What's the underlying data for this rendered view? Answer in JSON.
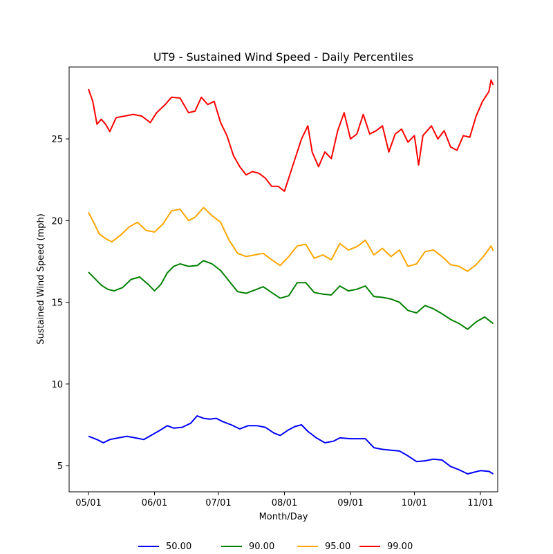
{
  "chart_data": {
    "type": "line",
    "title": "UT9 - Sustained Wind Speed - Daily Percentiles",
    "xlabel": "Month/Day",
    "ylabel": "Sustained Wind Speed (mph)",
    "x_range": [
      "2019-05-01",
      "2019-11-01"
    ],
    "x_ticks": [
      {
        "label": "05/01",
        "date": "2019-05-01"
      },
      {
        "label": "06/01",
        "date": "2019-06-01"
      },
      {
        "label": "07/01",
        "date": "2019-07-01"
      },
      {
        "label": "08/01",
        "date": "2019-08-01"
      },
      {
        "label": "09/01",
        "date": "2019-09-01"
      },
      {
        "label": "10/01",
        "date": "2019-10-01"
      },
      {
        "label": "11/01",
        "date": "2019-11-01"
      }
    ],
    "ylim": [
      3.4,
      29.4
    ],
    "y_ticks": [
      5,
      10,
      15,
      20,
      25
    ],
    "grid": false,
    "legend_position": "bottom",
    "series": [
      {
        "name": "50.00",
        "color": "#0000ff",
        "points": [
          [
            "2019-05-01",
            6.8
          ],
          [
            "2019-05-05",
            6.6
          ],
          [
            "2019-05-08",
            6.4
          ],
          [
            "2019-05-11",
            6.6
          ],
          [
            "2019-05-15",
            6.7
          ],
          [
            "2019-05-19",
            6.8
          ],
          [
            "2019-05-23",
            6.7
          ],
          [
            "2019-05-27",
            6.6
          ],
          [
            "2019-05-31",
            6.9
          ],
          [
            "2019-06-04",
            7.2
          ],
          [
            "2019-06-07",
            7.45
          ],
          [
            "2019-06-10",
            7.3
          ],
          [
            "2019-06-14",
            7.35
          ],
          [
            "2019-06-18",
            7.6
          ],
          [
            "2019-06-21",
            8.05
          ],
          [
            "2019-06-24",
            7.9
          ],
          [
            "2019-06-27",
            7.85
          ],
          [
            "2019-06-30",
            7.9
          ],
          [
            "2019-07-03",
            7.7
          ],
          [
            "2019-07-07",
            7.5
          ],
          [
            "2019-07-11",
            7.25
          ],
          [
            "2019-07-15",
            7.45
          ],
          [
            "2019-07-19",
            7.45
          ],
          [
            "2019-07-23",
            7.35
          ],
          [
            "2019-07-27",
            7.0
          ],
          [
            "2019-07-30",
            6.85
          ],
          [
            "2019-08-03",
            7.2
          ],
          [
            "2019-08-06",
            7.4
          ],
          [
            "2019-08-09",
            7.5
          ],
          [
            "2019-08-12",
            7.1
          ],
          [
            "2019-08-16",
            6.7
          ],
          [
            "2019-08-20",
            6.4
          ],
          [
            "2019-08-24",
            6.5
          ],
          [
            "2019-08-27",
            6.7
          ],
          [
            "2019-09-01",
            6.65
          ],
          [
            "2019-09-08",
            6.65
          ],
          [
            "2019-09-12",
            6.1
          ],
          [
            "2019-09-16",
            6.0
          ],
          [
            "2019-09-20",
            5.95
          ],
          [
            "2019-09-24",
            5.9
          ],
          [
            "2019-09-28",
            5.6
          ],
          [
            "2019-10-02",
            5.25
          ],
          [
            "2019-10-06",
            5.3
          ],
          [
            "2019-10-10",
            5.4
          ],
          [
            "2019-10-14",
            5.35
          ],
          [
            "2019-10-18",
            4.95
          ],
          [
            "2019-10-22",
            4.75
          ],
          [
            "2019-10-26",
            4.5
          ],
          [
            "2019-10-29",
            4.6
          ],
          [
            "2019-11-01",
            4.7
          ],
          [
            "2019-11-05",
            4.65
          ],
          [
            "2019-11-07",
            4.5
          ]
        ]
      },
      {
        "name": "90.00",
        "color": "#008000",
        "points": [
          [
            "2019-05-01",
            16.85
          ],
          [
            "2019-05-04",
            16.45
          ],
          [
            "2019-05-07",
            16.05
          ],
          [
            "2019-05-10",
            15.8
          ],
          [
            "2019-05-13",
            15.7
          ],
          [
            "2019-05-17",
            15.9
          ],
          [
            "2019-05-21",
            16.4
          ],
          [
            "2019-05-25",
            16.55
          ],
          [
            "2019-05-29",
            16.1
          ],
          [
            "2019-06-01",
            15.7
          ],
          [
            "2019-06-04",
            16.1
          ],
          [
            "2019-06-07",
            16.8
          ],
          [
            "2019-06-10",
            17.2
          ],
          [
            "2019-06-13",
            17.35
          ],
          [
            "2019-06-17",
            17.2
          ],
          [
            "2019-06-21",
            17.25
          ],
          [
            "2019-06-24",
            17.55
          ],
          [
            "2019-06-28",
            17.35
          ],
          [
            "2019-07-02",
            16.95
          ],
          [
            "2019-07-06",
            16.3
          ],
          [
            "2019-07-10",
            15.65
          ],
          [
            "2019-07-14",
            15.55
          ],
          [
            "2019-07-18",
            15.75
          ],
          [
            "2019-07-22",
            15.95
          ],
          [
            "2019-07-26",
            15.6
          ],
          [
            "2019-07-30",
            15.25
          ],
          [
            "2019-08-03",
            15.4
          ],
          [
            "2019-08-07",
            16.2
          ],
          [
            "2019-08-11",
            16.2
          ],
          [
            "2019-08-15",
            15.6
          ],
          [
            "2019-08-19",
            15.5
          ],
          [
            "2019-08-23",
            15.45
          ],
          [
            "2019-08-27",
            16.0
          ],
          [
            "2019-08-31",
            15.7
          ],
          [
            "2019-09-04",
            15.8
          ],
          [
            "2019-09-08",
            16.0
          ],
          [
            "2019-09-12",
            15.35
          ],
          [
            "2019-09-16",
            15.3
          ],
          [
            "2019-09-20",
            15.2
          ],
          [
            "2019-09-24",
            15.0
          ],
          [
            "2019-09-28",
            14.5
          ],
          [
            "2019-10-02",
            14.35
          ],
          [
            "2019-10-06",
            14.8
          ],
          [
            "2019-10-10",
            14.6
          ],
          [
            "2019-10-14",
            14.3
          ],
          [
            "2019-10-18",
            13.95
          ],
          [
            "2019-10-22",
            13.7
          ],
          [
            "2019-10-26",
            13.35
          ],
          [
            "2019-10-30",
            13.8
          ],
          [
            "2019-11-03",
            14.1
          ],
          [
            "2019-11-07",
            13.7
          ]
        ]
      },
      {
        "name": "95.00",
        "color": "#ffa500",
        "points": [
          [
            "2019-05-01",
            20.5
          ],
          [
            "2019-05-03",
            20.0
          ],
          [
            "2019-05-06",
            19.2
          ],
          [
            "2019-05-09",
            18.9
          ],
          [
            "2019-05-12",
            18.7
          ],
          [
            "2019-05-16",
            19.1
          ],
          [
            "2019-05-20",
            19.6
          ],
          [
            "2019-05-24",
            19.9
          ],
          [
            "2019-05-28",
            19.4
          ],
          [
            "2019-06-01",
            19.3
          ],
          [
            "2019-06-05",
            19.8
          ],
          [
            "2019-06-09",
            20.6
          ],
          [
            "2019-06-13",
            20.7
          ],
          [
            "2019-06-17",
            20.0
          ],
          [
            "2019-06-20",
            20.2
          ],
          [
            "2019-06-24",
            20.8
          ],
          [
            "2019-06-28",
            20.3
          ],
          [
            "2019-07-02",
            19.9
          ],
          [
            "2019-07-06",
            18.8
          ],
          [
            "2019-07-10",
            18.0
          ],
          [
            "2019-07-14",
            17.8
          ],
          [
            "2019-07-18",
            17.9
          ],
          [
            "2019-07-22",
            18.0
          ],
          [
            "2019-07-26",
            17.6
          ],
          [
            "2019-07-30",
            17.25
          ],
          [
            "2019-08-03",
            17.8
          ],
          [
            "2019-08-07",
            18.45
          ],
          [
            "2019-08-11",
            18.55
          ],
          [
            "2019-08-15",
            17.7
          ],
          [
            "2019-08-19",
            17.9
          ],
          [
            "2019-08-23",
            17.6
          ],
          [
            "2019-08-27",
            18.6
          ],
          [
            "2019-08-31",
            18.2
          ],
          [
            "2019-09-04",
            18.4
          ],
          [
            "2019-09-08",
            18.8
          ],
          [
            "2019-09-12",
            17.9
          ],
          [
            "2019-09-16",
            18.3
          ],
          [
            "2019-09-20",
            17.8
          ],
          [
            "2019-09-24",
            18.2
          ],
          [
            "2019-09-28",
            17.2
          ],
          [
            "2019-10-02",
            17.35
          ],
          [
            "2019-10-06",
            18.1
          ],
          [
            "2019-10-10",
            18.2
          ],
          [
            "2019-10-14",
            17.8
          ],
          [
            "2019-10-18",
            17.3
          ],
          [
            "2019-10-22",
            17.2
          ],
          [
            "2019-10-26",
            16.9
          ],
          [
            "2019-10-30",
            17.3
          ],
          [
            "2019-11-03",
            17.9
          ],
          [
            "2019-11-06",
            18.45
          ],
          [
            "2019-11-07",
            18.15
          ]
        ]
      },
      {
        "name": "99.00",
        "color": "#ff0000",
        "points": [
          [
            "2019-05-01",
            28.05
          ],
          [
            "2019-05-03",
            27.3
          ],
          [
            "2019-05-05",
            25.9
          ],
          [
            "2019-05-07",
            26.2
          ],
          [
            "2019-05-09",
            25.9
          ],
          [
            "2019-05-11",
            25.45
          ],
          [
            "2019-05-14",
            26.3
          ],
          [
            "2019-05-18",
            26.4
          ],
          [
            "2019-05-22",
            26.5
          ],
          [
            "2019-05-26",
            26.4
          ],
          [
            "2019-05-30",
            26.0
          ],
          [
            "2019-06-02",
            26.6
          ],
          [
            "2019-06-06",
            27.1
          ],
          [
            "2019-06-09",
            27.55
          ],
          [
            "2019-06-13",
            27.5
          ],
          [
            "2019-06-17",
            26.6
          ],
          [
            "2019-06-20",
            26.7
          ],
          [
            "2019-06-23",
            27.55
          ],
          [
            "2019-06-26",
            27.1
          ],
          [
            "2019-06-29",
            27.3
          ],
          [
            "2019-07-02",
            26.0
          ],
          [
            "2019-07-05",
            25.2
          ],
          [
            "2019-07-08",
            24.0
          ],
          [
            "2019-07-11",
            23.3
          ],
          [
            "2019-07-14",
            22.8
          ],
          [
            "2019-07-17",
            23.0
          ],
          [
            "2019-07-20",
            22.9
          ],
          [
            "2019-07-23",
            22.6
          ],
          [
            "2019-07-26",
            22.1
          ],
          [
            "2019-07-29",
            22.1
          ],
          [
            "2019-08-01",
            21.8
          ],
          [
            "2019-08-03",
            22.6
          ],
          [
            "2019-08-06",
            23.8
          ],
          [
            "2019-08-09",
            25.0
          ],
          [
            "2019-08-12",
            25.8
          ],
          [
            "2019-08-14",
            24.2
          ],
          [
            "2019-08-17",
            23.3
          ],
          [
            "2019-08-20",
            24.2
          ],
          [
            "2019-08-23",
            23.8
          ],
          [
            "2019-08-26",
            25.5
          ],
          [
            "2019-08-29",
            26.6
          ],
          [
            "2019-09-01",
            25.0
          ],
          [
            "2019-09-04",
            25.3
          ],
          [
            "2019-09-07",
            26.5
          ],
          [
            "2019-09-10",
            25.3
          ],
          [
            "2019-09-13",
            25.5
          ],
          [
            "2019-09-16",
            25.8
          ],
          [
            "2019-09-19",
            24.2
          ],
          [
            "2019-09-22",
            25.3
          ],
          [
            "2019-09-25",
            25.6
          ],
          [
            "2019-09-28",
            24.8
          ],
          [
            "2019-10-01",
            25.2
          ],
          [
            "2019-10-03",
            23.4
          ],
          [
            "2019-10-05",
            25.2
          ],
          [
            "2019-10-09",
            25.8
          ],
          [
            "2019-10-12",
            25.0
          ],
          [
            "2019-10-15",
            25.5
          ],
          [
            "2019-10-18",
            24.5
          ],
          [
            "2019-10-21",
            24.3
          ],
          [
            "2019-10-24",
            25.2
          ],
          [
            "2019-10-27",
            25.1
          ],
          [
            "2019-10-30",
            26.4
          ],
          [
            "2019-11-02",
            27.3
          ],
          [
            "2019-11-05",
            27.9
          ],
          [
            "2019-11-06",
            28.6
          ],
          [
            "2019-11-07",
            28.3
          ]
        ]
      }
    ]
  }
}
